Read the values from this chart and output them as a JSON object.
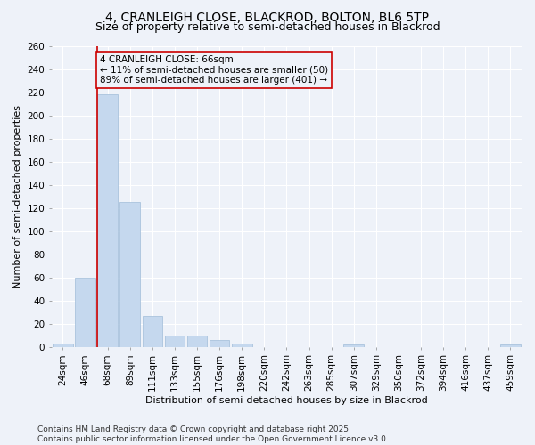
{
  "title_line1": "4, CRANLEIGH CLOSE, BLACKROD, BOLTON, BL6 5TP",
  "title_line2": "Size of property relative to semi-detached houses in Blackrod",
  "xlabel": "Distribution of semi-detached houses by size in Blackrod",
  "ylabel": "Number of semi-detached properties",
  "categories": [
    "24sqm",
    "46sqm",
    "68sqm",
    "89sqm",
    "111sqm",
    "133sqm",
    "155sqm",
    "176sqm",
    "198sqm",
    "220sqm",
    "242sqm",
    "263sqm",
    "285sqm",
    "307sqm",
    "329sqm",
    "350sqm",
    "372sqm",
    "394sqm",
    "416sqm",
    "437sqm",
    "459sqm"
  ],
  "values": [
    3,
    60,
    218,
    125,
    27,
    10,
    10,
    6,
    3,
    0,
    0,
    0,
    0,
    2,
    0,
    0,
    0,
    0,
    0,
    0,
    2
  ],
  "bar_color": "#c5d8ee",
  "bar_edge_color": "#a0bcd8",
  "property_line_color": "#cc0000",
  "property_bar_index": 2,
  "annotation_text": "4 CRANLEIGH CLOSE: 66sqm\n← 11% of semi-detached houses are smaller (50)\n89% of semi-detached houses are larger (401) →",
  "annotation_box_edge_color": "#cc0000",
  "ylim": [
    0,
    260
  ],
  "yticks": [
    0,
    20,
    40,
    60,
    80,
    100,
    120,
    140,
    160,
    180,
    200,
    220,
    240,
    260
  ],
  "footnote": "Contains HM Land Registry data © Crown copyright and database right 2025.\nContains public sector information licensed under the Open Government Licence v3.0.",
  "background_color": "#eef2f9",
  "grid_color": "#ffffff",
  "title_fontsize": 10,
  "subtitle_fontsize": 9,
  "axis_label_fontsize": 8,
  "tick_fontsize": 7.5,
  "annotation_fontsize": 7.5,
  "footnote_fontsize": 6.5
}
